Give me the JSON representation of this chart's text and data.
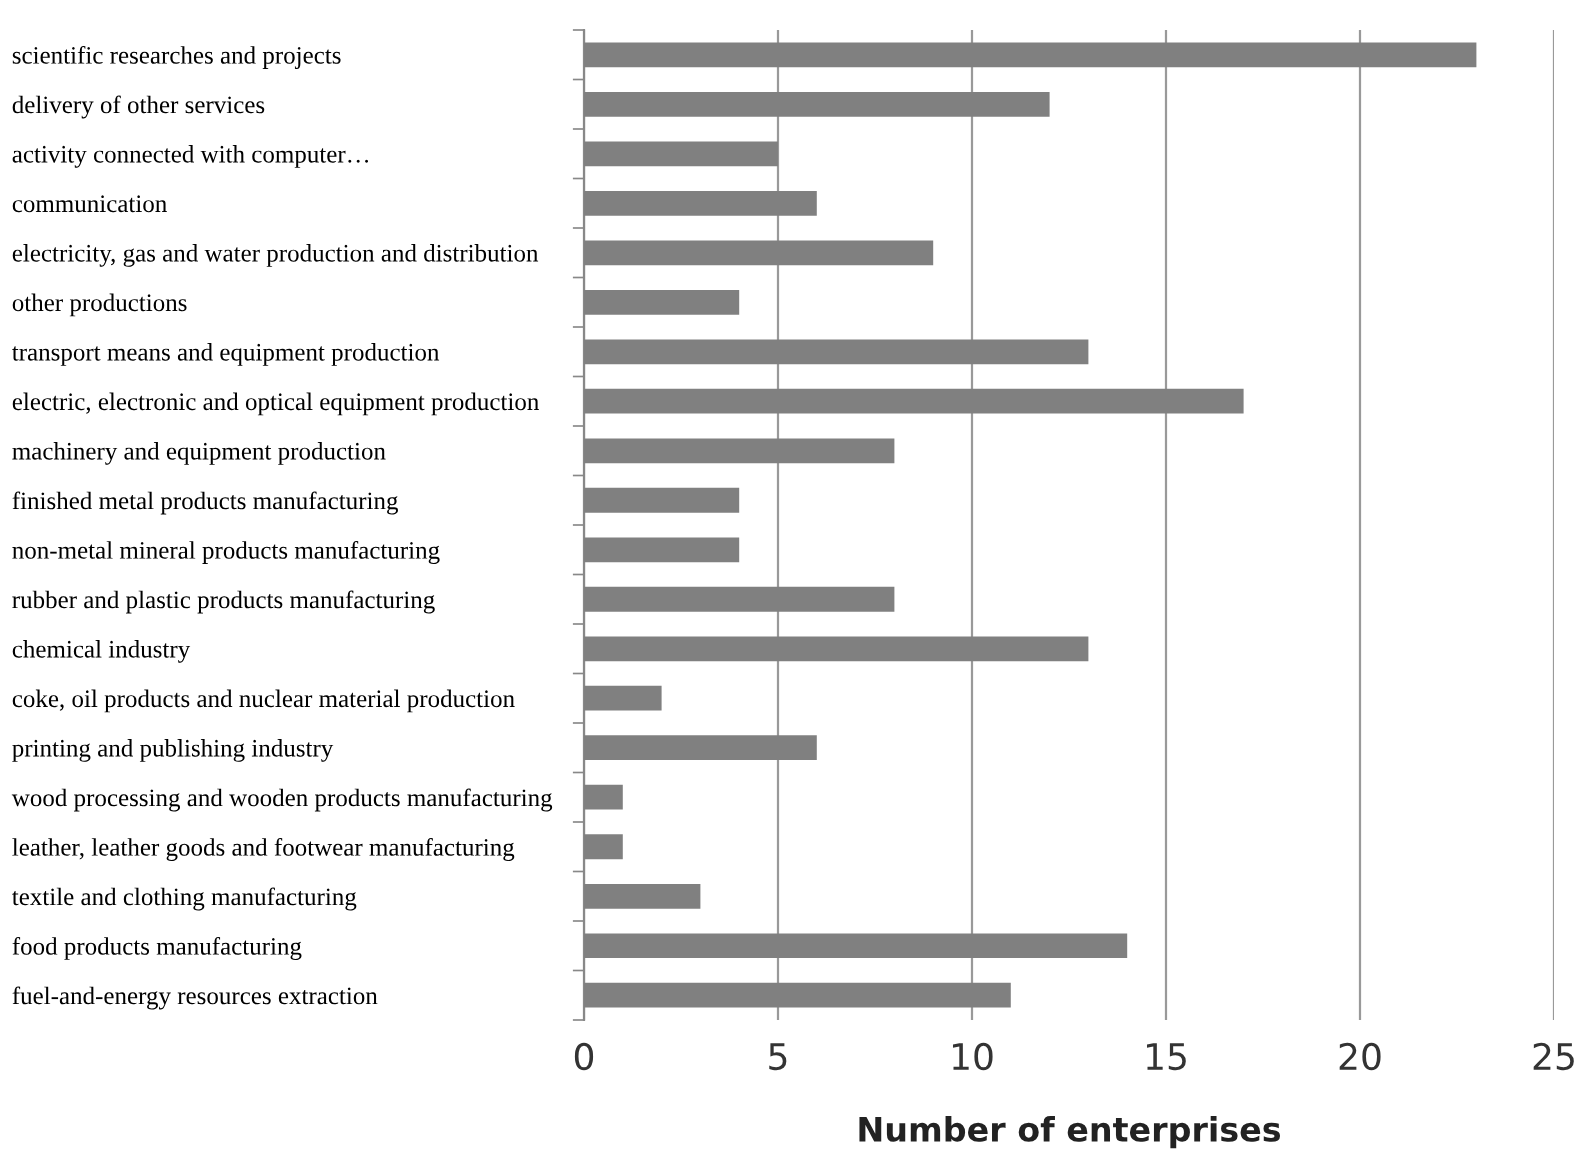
{
  "chart_data": {
    "type": "bar",
    "orientation": "horizontal",
    "xlabel": "Number of enterprises",
    "categories": [
      "scientific researches and projects",
      "delivery of other services",
      "activity connected with computer…",
      "communication",
      "electricity, gas and water production and distribution",
      "other productions",
      "transport means and equipment production",
      "electric, electronic and optical equipment production",
      "machinery and equipment production",
      "finished metal products manufacturing",
      "non-metal mineral products manufacturing",
      "rubber and plastic products manufacturing",
      "chemical industry",
      "coke, oil products and nuclear material production",
      "printing and publishing industry",
      "wood processing and wooden products manufacturing",
      "leather, leather goods and footwear manufacturing",
      "textile and clothing manufacturing",
      "food products manufacturing",
      "fuel-and-energy resources extraction"
    ],
    "values": [
      23,
      12,
      5,
      6,
      9,
      4,
      13,
      17,
      8,
      4,
      4,
      8,
      13,
      2,
      6,
      1,
      1,
      3,
      14,
      11
    ],
    "color": "#808080",
    "xlim": [
      0,
      25
    ],
    "xticks": [
      0,
      5,
      10,
      15,
      20,
      25
    ],
    "grid": "x"
  }
}
